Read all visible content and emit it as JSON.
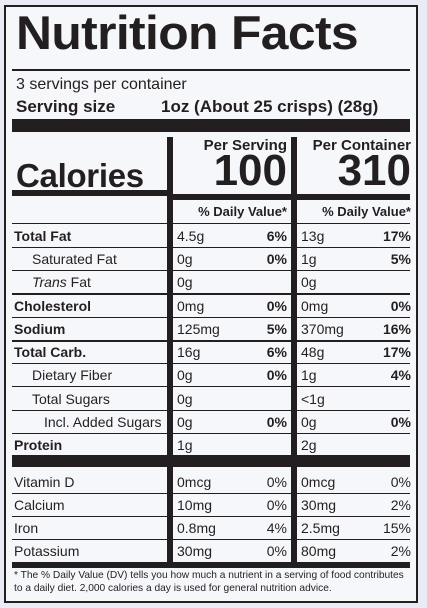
{
  "title": "Nutrition Facts",
  "servings_per_container": "3 servings per container",
  "serving_size_label": "Serving size",
  "serving_size_value": "1oz (About 25 crisps) (28g)",
  "col_per_serving": "Per Serving",
  "col_per_container": "Per Container",
  "calories_label": "Calories",
  "calories_serving": "100",
  "calories_container": "310",
  "dv_header": "% Daily Value*",
  "nutrients": [
    {
      "name": "Total Fat",
      "serv_amt": "4.5g",
      "serv_dv": "6%",
      "cont_amt": "13g",
      "cont_dv": "17%"
    },
    {
      "name": "Saturated Fat",
      "serv_amt": "0g",
      "serv_dv": "0%",
      "cont_amt": "1g",
      "cont_dv": "5%"
    },
    {
      "name_italic": "Trans",
      "name_rest": " Fat",
      "serv_amt": "0g",
      "serv_dv": "",
      "cont_amt": "0g",
      "cont_dv": ""
    },
    {
      "name": "Cholesterol",
      "serv_amt": "0mg",
      "serv_dv": "0%",
      "cont_amt": "0mg",
      "cont_dv": "0%"
    },
    {
      "name": "Sodium",
      "serv_amt": "125mg",
      "serv_dv": "5%",
      "cont_amt": "370mg",
      "cont_dv": "16%"
    },
    {
      "name": "Total Carb.",
      "serv_amt": "16g",
      "serv_dv": "6%",
      "cont_amt": "48g",
      "cont_dv": "17%"
    },
    {
      "name": "Dietary Fiber",
      "serv_amt": "0g",
      "serv_dv": "0%",
      "cont_amt": "1g",
      "cont_dv": "4%"
    },
    {
      "name": "Total Sugars",
      "serv_amt": "0g",
      "serv_dv": "",
      "cont_amt": "<1g",
      "cont_dv": ""
    },
    {
      "name": "Incl. Added Sugars",
      "serv_amt": "0g",
      "serv_dv": "0%",
      "cont_amt": "0g",
      "cont_dv": "0%"
    },
    {
      "name": "Protein",
      "serv_amt": "1g",
      "serv_dv": "",
      "cont_amt": "2g",
      "cont_dv": ""
    }
  ],
  "vitamins": [
    {
      "name": "Vitamin D",
      "serv_amt": "0mcg",
      "serv_dv": "0%",
      "cont_amt": "0mcg",
      "cont_dv": "0%"
    },
    {
      "name": "Calcium",
      "serv_amt": "10mg",
      "serv_dv": "0%",
      "cont_amt": "30mg",
      "cont_dv": "2%"
    },
    {
      "name": "Iron",
      "serv_amt": "0.8mg",
      "serv_dv": "4%",
      "cont_amt": "2.5mg",
      "cont_dv": "15%"
    },
    {
      "name": "Potassium",
      "serv_amt": "30mg",
      "serv_dv": "0%",
      "cont_amt": "80mg",
      "cont_dv": "2%"
    }
  ],
  "footnote": "* The % Daily Value (DV) tells you how much a nutrient in a serving of food contributes to a daily diet. 2,000 calories a day is used for general nutrition advice."
}
